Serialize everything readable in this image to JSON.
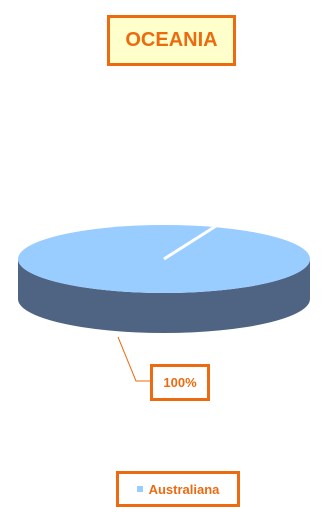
{
  "colors": {
    "accent": "#ec6b11",
    "title_fill": "#ffffcc",
    "slice_top": "#99ccff",
    "slice_side": "#4f6482"
  },
  "chart_data": {
    "type": "pie",
    "title": "OCEANIA",
    "categories": [
      "Australiana"
    ],
    "values": [
      100
    ],
    "data_labels": [
      "100%"
    ],
    "legend": {
      "placement": "bottom",
      "entries": [
        "Australiana"
      ]
    },
    "style": "3d-pie"
  }
}
